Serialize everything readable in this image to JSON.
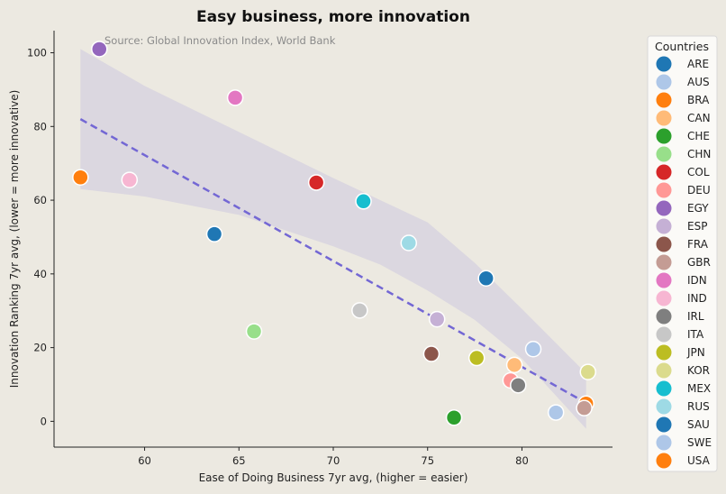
{
  "chart_data": {
    "type": "scatter",
    "title": "Easy business, more innovation",
    "source": "Source: Global Innovation Index, World Bank",
    "xlabel": "Ease of Doing Business 7yr avg, (higher = easier)",
    "ylabel": "Innovation Ranking 7yr avg, (lower = more innovative)",
    "xlim": [
      55.2,
      84.8
    ],
    "ylim": [
      -7,
      106
    ],
    "xticks": [
      60,
      65,
      70,
      75,
      80
    ],
    "yticks": [
      0,
      20,
      40,
      60,
      80,
      100
    ],
    "grid": false,
    "legend_title": "Countries",
    "legend_position": "right",
    "trendline": {
      "style": "dashed",
      "color": "#7367d4",
      "x": [
        56.6,
        83.4
      ],
      "y": [
        82,
        5
      ]
    },
    "confidence_band": {
      "color": "#d9d5e0",
      "x": [
        56.6,
        60,
        65,
        70,
        72.5,
        75,
        77.5,
        80,
        83.4
      ],
      "upper": [
        101,
        91,
        78.5,
        66,
        60,
        54,
        43,
        30.5,
        13
      ],
      "lower": [
        63,
        61,
        56,
        47.5,
        42.5,
        35.5,
        27.5,
        17,
        -2
      ]
    },
    "series": [
      {
        "name": "ARE",
        "color": "#1f77b4"
      },
      {
        "name": "AUS",
        "color": "#aec7e8"
      },
      {
        "name": "BRA",
        "color": "#ff7f0e"
      },
      {
        "name": "CAN",
        "color": "#ffbb78"
      },
      {
        "name": "CHE",
        "color": "#2ca02c"
      },
      {
        "name": "CHN",
        "color": "#98df8a"
      },
      {
        "name": "COL",
        "color": "#d62728"
      },
      {
        "name": "DEU",
        "color": "#ff9896"
      },
      {
        "name": "EGY",
        "color": "#9467bd"
      },
      {
        "name": "ESP",
        "color": "#c5b0d5"
      },
      {
        "name": "FRA",
        "color": "#8c564b"
      },
      {
        "name": "GBR",
        "color": "#c49c94"
      },
      {
        "name": "IDN",
        "color": "#e377c2"
      },
      {
        "name": "IND",
        "color": "#f7b6d2"
      },
      {
        "name": "IRL",
        "color": "#7f7f7f"
      },
      {
        "name": "ITA",
        "color": "#c7c7c7"
      },
      {
        "name": "JPN",
        "color": "#bcbd22"
      },
      {
        "name": "KOR",
        "color": "#dbdb8d"
      },
      {
        "name": "MEX",
        "color": "#17becf"
      },
      {
        "name": "RUS",
        "color": "#9edae5"
      },
      {
        "name": "SAU",
        "color": "#1f77b4"
      },
      {
        "name": "SWE",
        "color": "#aec7e8"
      },
      {
        "name": "USA",
        "color": "#ff7f0e"
      }
    ],
    "points": [
      {
        "x": 57.6,
        "y": 101,
        "color": "#9467bd"
      },
      {
        "x": 64.8,
        "y": 87.8,
        "color": "#e377c2"
      },
      {
        "x": 56.6,
        "y": 66.2,
        "color": "#ff7f0e"
      },
      {
        "x": 59.2,
        "y": 65.5,
        "color": "#f7b6d2"
      },
      {
        "x": 69.1,
        "y": 64.8,
        "color": "#d62728"
      },
      {
        "x": 71.6,
        "y": 59.7,
        "color": "#17becf"
      },
      {
        "x": 63.7,
        "y": 50.8,
        "color": "#1f77b4"
      },
      {
        "x": 74.0,
        "y": 48.4,
        "color": "#9edae5"
      },
      {
        "x": 78.1,
        "y": 38.8,
        "color": "#1f77b4"
      },
      {
        "x": 71.4,
        "y": 30.1,
        "color": "#c7c7c7"
      },
      {
        "x": 75.5,
        "y": 27.7,
        "color": "#c5b0d5"
      },
      {
        "x": 65.8,
        "y": 24.4,
        "color": "#98df8a"
      },
      {
        "x": 80.6,
        "y": 19.6,
        "color": "#aec7e8"
      },
      {
        "x": 75.2,
        "y": 18.3,
        "color": "#8c564b"
      },
      {
        "x": 77.6,
        "y": 17.2,
        "color": "#bcbd22"
      },
      {
        "x": 79.6,
        "y": 15.3,
        "color": "#ffbb78"
      },
      {
        "x": 83.5,
        "y": 13.4,
        "color": "#dbdb8d"
      },
      {
        "x": 79.4,
        "y": 11.1,
        "color": "#ff9896"
      },
      {
        "x": 79.8,
        "y": 9.8,
        "color": "#7f7f7f"
      },
      {
        "x": 83.4,
        "y": 4.8,
        "color": "#ff7f0e"
      },
      {
        "x": 83.3,
        "y": 3.6,
        "color": "#c49c94"
      },
      {
        "x": 81.8,
        "y": 2.4,
        "color": "#aec7e8"
      },
      {
        "x": 76.4,
        "y": 1.0,
        "color": "#2ca02c"
      }
    ]
  }
}
